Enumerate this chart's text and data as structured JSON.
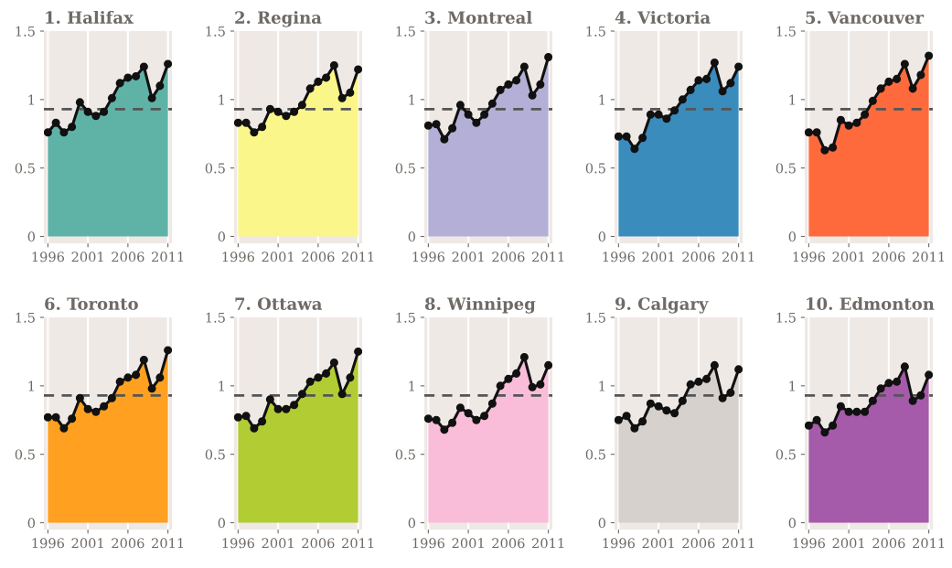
{
  "chart_data": [
    {
      "type": "area",
      "title": "1. Halifax",
      "x": [
        1996,
        1997,
        1998,
        1999,
        2000,
        2001,
        2002,
        2003,
        2004,
        2005,
        2006,
        2007,
        2008,
        2009,
        2010,
        2011
      ],
      "xlim": [
        1995.5,
        2011.5
      ],
      "xticks": [
        1996,
        2001,
        2006,
        2011
      ],
      "ylim": [
        -0.05,
        1.5
      ],
      "yticks": [
        0,
        0.5,
        1,
        1.5
      ],
      "grid": "x",
      "marker": "circle",
      "ref_lines": [
        {
          "axis": "y",
          "value": 0.93,
          "color": "#555555",
          "line_style": "dashed"
        }
      ],
      "series": [
        {
          "color": "#5fb3a6",
          "values": [
            0.76,
            0.83,
            0.76,
            0.8,
            0.98,
            0.91,
            0.88,
            0.91,
            1.01,
            1.12,
            1.16,
            1.17,
            1.24,
            1.01,
            1.1,
            1.26
          ]
        }
      ]
    },
    {
      "type": "area",
      "title": "2. Regina",
      "x": [
        1996,
        1997,
        1998,
        1999,
        2000,
        2001,
        2002,
        2003,
        2004,
        2005,
        2006,
        2007,
        2008,
        2009,
        2010,
        2011
      ],
      "xlim": [
        1995.5,
        2011.5
      ],
      "xticks": [
        1996,
        2001,
        2006,
        2011
      ],
      "ylim": [
        -0.05,
        1.5
      ],
      "yticks": [
        0,
        0.5,
        1,
        1.5
      ],
      "grid": "x",
      "marker": "circle",
      "ref_lines": [
        {
          "axis": "y",
          "value": 0.93,
          "color": "#555555",
          "line_style": "dashed"
        }
      ],
      "series": [
        {
          "color": "#fbf68a",
          "values": [
            0.83,
            0.83,
            0.76,
            0.8,
            0.93,
            0.91,
            0.88,
            0.91,
            0.96,
            1.08,
            1.13,
            1.16,
            1.25,
            1.01,
            1.05,
            1.22
          ]
        }
      ]
    },
    {
      "type": "area",
      "title": "3. Montreal",
      "x": [
        1996,
        1997,
        1998,
        1999,
        2000,
        2001,
        2002,
        2003,
        2004,
        2005,
        2006,
        2007,
        2008,
        2009,
        2010,
        2011
      ],
      "xlim": [
        1995.5,
        2011.5
      ],
      "xticks": [
        1996,
        2001,
        2006,
        2011
      ],
      "ylim": [
        -0.05,
        1.5
      ],
      "yticks": [
        0,
        0.5,
        1,
        1.5
      ],
      "grid": "x",
      "marker": "circle",
      "ref_lines": [
        {
          "axis": "y",
          "value": 0.93,
          "color": "#555555",
          "line_style": "dashed"
        }
      ],
      "series": [
        {
          "color": "#b3afd6",
          "values": [
            0.81,
            0.82,
            0.71,
            0.79,
            0.96,
            0.89,
            0.83,
            0.89,
            0.97,
            1.07,
            1.11,
            1.14,
            1.24,
            1.03,
            1.11,
            1.31
          ]
        }
      ]
    },
    {
      "type": "area",
      "title": "4. Victoria",
      "x": [
        1996,
        1997,
        1998,
        1999,
        2000,
        2001,
        2002,
        2003,
        2004,
        2005,
        2006,
        2007,
        2008,
        2009,
        2010,
        2011
      ],
      "xlim": [
        1995.5,
        2011.5
      ],
      "xticks": [
        1996,
        2001,
        2006,
        2011
      ],
      "ylim": [
        -0.05,
        1.5
      ],
      "yticks": [
        0,
        0.5,
        1,
        1.5
      ],
      "grid": "x",
      "marker": "circle",
      "ref_lines": [
        {
          "axis": "y",
          "value": 0.93,
          "color": "#555555",
          "line_style": "dashed"
        }
      ],
      "series": [
        {
          "color": "#3a8cbd",
          "values": [
            0.73,
            0.73,
            0.64,
            0.72,
            0.89,
            0.89,
            0.86,
            0.92,
            1.0,
            1.07,
            1.14,
            1.15,
            1.27,
            1.06,
            1.12,
            1.24
          ]
        }
      ]
    },
    {
      "type": "area",
      "title": "5. Vancouver",
      "x": [
        1996,
        1997,
        1998,
        1999,
        2000,
        2001,
        2002,
        2003,
        2004,
        2005,
        2006,
        2007,
        2008,
        2009,
        2010,
        2011
      ],
      "xlim": [
        1995.5,
        2011.5
      ],
      "xticks": [
        1996,
        2001,
        2006,
        2011
      ],
      "ylim": [
        -0.05,
        1.5
      ],
      "yticks": [
        0,
        0.5,
        1,
        1.5
      ],
      "grid": "x",
      "marker": "circle",
      "ref_lines": [
        {
          "axis": "y",
          "value": 0.93,
          "color": "#555555",
          "line_style": "dashed"
        }
      ],
      "series": [
        {
          "color": "#ff6a3d",
          "values": [
            0.76,
            0.76,
            0.63,
            0.65,
            0.85,
            0.81,
            0.83,
            0.89,
            0.99,
            1.08,
            1.13,
            1.15,
            1.26,
            1.08,
            1.18,
            1.32
          ]
        }
      ]
    },
    {
      "type": "area",
      "title": "6. Toronto",
      "x": [
        1996,
        1997,
        1998,
        1999,
        2000,
        2001,
        2002,
        2003,
        2004,
        2005,
        2006,
        2007,
        2008,
        2009,
        2010,
        2011
      ],
      "xlim": [
        1995.5,
        2011.5
      ],
      "xticks": [
        1996,
        2001,
        2006,
        2011
      ],
      "ylim": [
        -0.05,
        1.5
      ],
      "yticks": [
        0,
        0.5,
        1,
        1.5
      ],
      "grid": "x",
      "marker": "circle",
      "ref_lines": [
        {
          "axis": "y",
          "value": 0.93,
          "color": "#555555",
          "line_style": "dashed"
        }
      ],
      "series": [
        {
          "color": "#ffa020",
          "values": [
            0.77,
            0.77,
            0.69,
            0.76,
            0.91,
            0.83,
            0.81,
            0.85,
            0.91,
            1.03,
            1.06,
            1.08,
            1.19,
            0.98,
            1.06,
            1.26
          ]
        }
      ]
    },
    {
      "type": "area",
      "title": "7. Ottawa",
      "x": [
        1996,
        1997,
        1998,
        1999,
        2000,
        2001,
        2002,
        2003,
        2004,
        2005,
        2006,
        2007,
        2008,
        2009,
        2010,
        2011
      ],
      "xlim": [
        1995.5,
        2011.5
      ],
      "xticks": [
        1996,
        2001,
        2006,
        2011
      ],
      "ylim": [
        -0.05,
        1.5
      ],
      "yticks": [
        0,
        0.5,
        1,
        1.5
      ],
      "grid": "x",
      "marker": "circle",
      "ref_lines": [
        {
          "axis": "y",
          "value": 0.93,
          "color": "#555555",
          "line_style": "dashed"
        }
      ],
      "series": [
        {
          "color": "#b2cc34",
          "values": [
            0.77,
            0.78,
            0.69,
            0.74,
            0.9,
            0.83,
            0.83,
            0.86,
            0.94,
            1.03,
            1.06,
            1.09,
            1.17,
            0.94,
            1.06,
            1.25
          ]
        }
      ]
    },
    {
      "type": "area",
      "title": "8. Winnipeg",
      "x": [
        1996,
        1997,
        1998,
        1999,
        2000,
        2001,
        2002,
        2003,
        2004,
        2005,
        2006,
        2007,
        2008,
        2009,
        2010,
        2011
      ],
      "xlim": [
        1995.5,
        2011.5
      ],
      "xticks": [
        1996,
        2001,
        2006,
        2011
      ],
      "ylim": [
        -0.05,
        1.5
      ],
      "yticks": [
        0,
        0.5,
        1,
        1.5
      ],
      "grid": "x",
      "marker": "circle",
      "ref_lines": [
        {
          "axis": "y",
          "value": 0.93,
          "color": "#555555",
          "line_style": "dashed"
        }
      ],
      "series": [
        {
          "color": "#f9bdd9",
          "values": [
            0.76,
            0.75,
            0.68,
            0.73,
            0.84,
            0.8,
            0.75,
            0.78,
            0.87,
            1.0,
            1.05,
            1.09,
            1.21,
            0.99,
            1.01,
            1.15
          ]
        }
      ]
    },
    {
      "type": "area",
      "title": "9. Calgary",
      "x": [
        1996,
        1997,
        1998,
        1999,
        2000,
        2001,
        2002,
        2003,
        2004,
        2005,
        2006,
        2007,
        2008,
        2009,
        2010,
        2011
      ],
      "xlim": [
        1995.5,
        2011.5
      ],
      "xticks": [
        1996,
        2001,
        2006,
        2011
      ],
      "ylim": [
        -0.05,
        1.5
      ],
      "yticks": [
        0,
        0.5,
        1,
        1.5
      ],
      "grid": "x",
      "marker": "circle",
      "ref_lines": [
        {
          "axis": "y",
          "value": 0.93,
          "color": "#555555",
          "line_style": "dashed"
        }
      ],
      "series": [
        {
          "color": "#d6d1cd",
          "values": [
            0.75,
            0.78,
            0.69,
            0.74,
            0.87,
            0.85,
            0.82,
            0.8,
            0.89,
            1.01,
            1.03,
            1.05,
            1.15,
            0.91,
            0.95,
            1.12
          ]
        }
      ]
    },
    {
      "type": "area",
      "title": "10. Edmonton",
      "x": [
        1996,
        1997,
        1998,
        1999,
        2000,
        2001,
        2002,
        2003,
        2004,
        2005,
        2006,
        2007,
        2008,
        2009,
        2010,
        2011
      ],
      "xlim": [
        1995.5,
        2011.5
      ],
      "xticks": [
        1996,
        2001,
        2006,
        2011
      ],
      "ylim": [
        -0.05,
        1.5
      ],
      "yticks": [
        0,
        0.5,
        1,
        1.5
      ],
      "grid": "x",
      "marker": "circle",
      "ref_lines": [
        {
          "axis": "y",
          "value": 0.93,
          "color": "#555555",
          "line_style": "dashed"
        }
      ],
      "series": [
        {
          "color": "#a55ba9",
          "values": [
            0.71,
            0.75,
            0.66,
            0.71,
            0.85,
            0.81,
            0.81,
            0.81,
            0.89,
            0.98,
            1.02,
            1.03,
            1.14,
            0.89,
            0.93,
            1.08
          ]
        }
      ]
    }
  ]
}
